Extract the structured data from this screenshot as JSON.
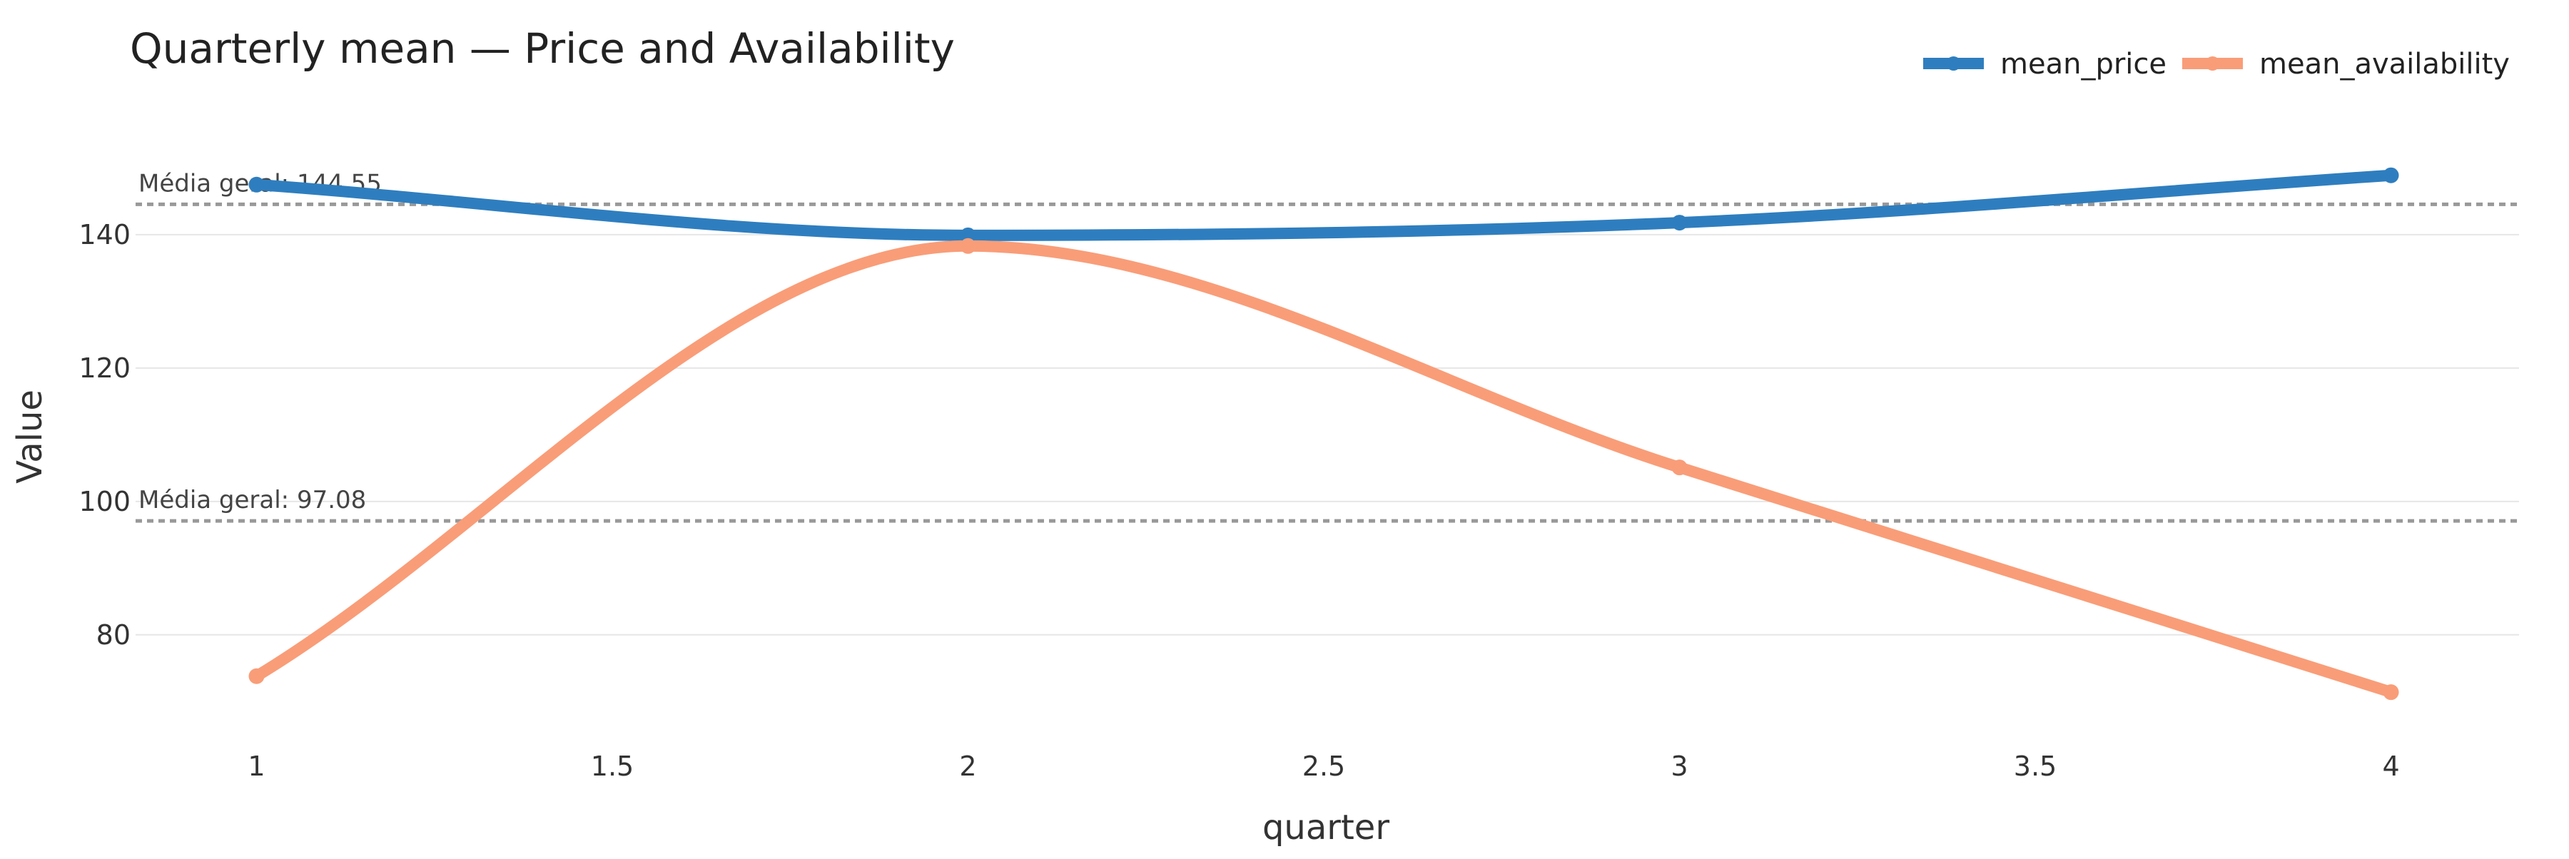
{
  "chart_data": {
    "type": "line",
    "title": "Quarterly mean — Price and Availability",
    "xlabel": "quarter",
    "ylabel": "Value",
    "x": [
      1,
      2,
      3,
      4
    ],
    "xlim": [
      0.83,
      4.18
    ],
    "ylim": [
      65,
      157
    ],
    "x_ticks": [
      1,
      1.5,
      2,
      2.5,
      3,
      3.5,
      4
    ],
    "x_tick_labels": [
      "1",
      "1.5",
      "2",
      "2.5",
      "3",
      "3.5",
      "4"
    ],
    "y_ticks": [
      80,
      100,
      120,
      140
    ],
    "y_tick_labels": [
      "80",
      "100",
      "120",
      "140"
    ],
    "grid": true,
    "legend_position": "top-right",
    "series": [
      {
        "name": "mean_price",
        "values": [
          147.5,
          139.9,
          141.8,
          148.9
        ],
        "color": "#2e7ebf"
      },
      {
        "name": "mean_availability",
        "values": [
          73.8,
          138.3,
          105.1,
          71.4
        ],
        "color": "#f99d78"
      }
    ],
    "reference_lines": [
      {
        "value": 144.55,
        "label": "Média geral: 144.55"
      },
      {
        "value": 97.08,
        "label": "Média geral: 97.08"
      }
    ]
  }
}
